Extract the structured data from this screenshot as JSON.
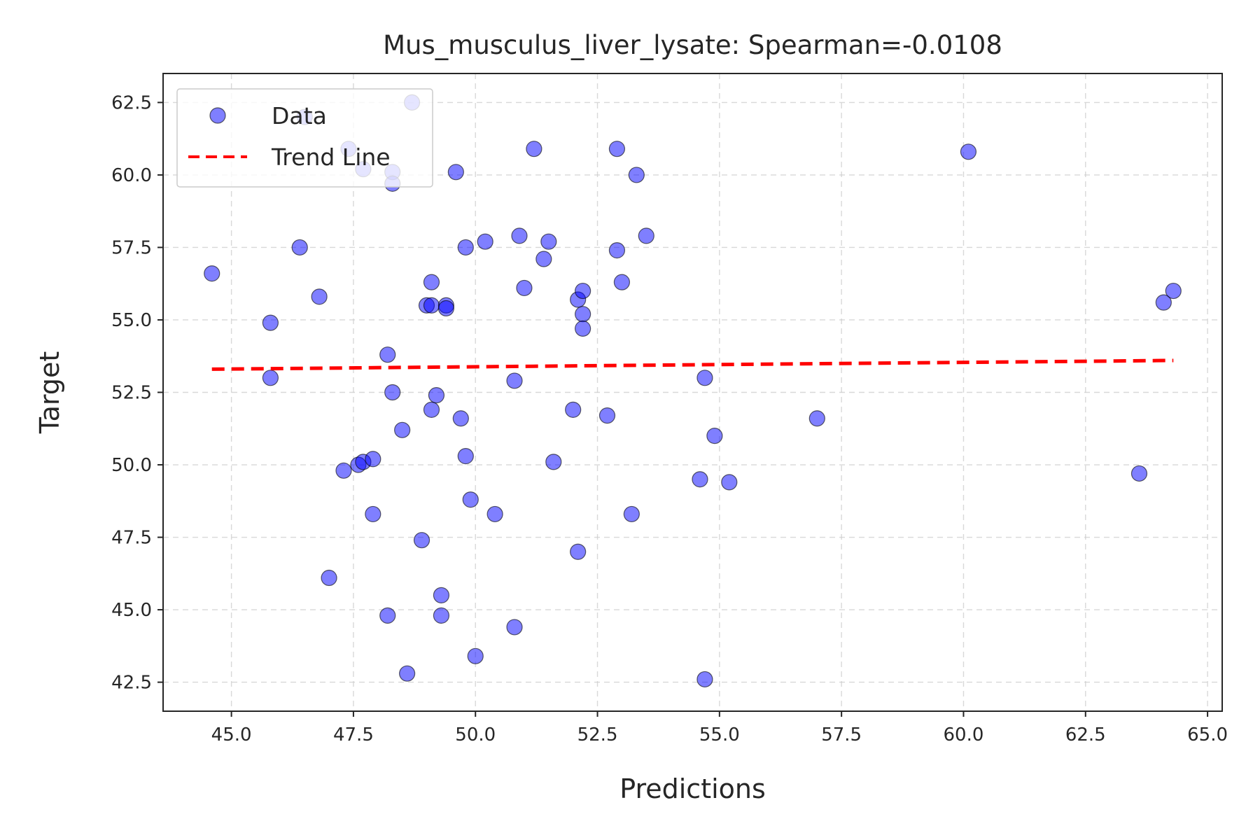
{
  "chart_data": {
    "type": "scatter",
    "title": "Mus_musculus_liver_lysate: Spearman=-0.0108",
    "xlabel": "Predictions",
    "ylabel": "Target",
    "xlim": [
      43.6,
      65.3
    ],
    "ylim": [
      41.5,
      63.5
    ],
    "xticks": [
      45.0,
      47.5,
      50.0,
      52.5,
      55.0,
      57.5,
      60.0,
      62.5,
      65.0
    ],
    "yticks": [
      42.5,
      45.0,
      47.5,
      50.0,
      52.5,
      55.0,
      57.5,
      60.0,
      62.5
    ],
    "xtick_labels": [
      "45.0",
      "47.5",
      "50.0",
      "52.5",
      "55.0",
      "57.5",
      "60.0",
      "62.5",
      "65.0"
    ],
    "ytick_labels": [
      "42.5",
      "45.0",
      "47.5",
      "50.0",
      "52.5",
      "55.0",
      "57.5",
      "60.0",
      "62.5"
    ],
    "grid": true,
    "legend": {
      "placement": "upper-left",
      "entries": [
        {
          "label": "Data",
          "kind": "marker"
        },
        {
          "label": "Trend Line",
          "kind": "dashed-line"
        }
      ]
    },
    "colors": {
      "points": "#0000ff",
      "point_edge": "#000000",
      "trend": "#ff0000"
    },
    "series": [
      {
        "name": "Data",
        "kind": "scatter",
        "points": [
          [
            44.6,
            56.6
          ],
          [
            45.8,
            54.9
          ],
          [
            45.8,
            53.0
          ],
          [
            46.4,
            57.5
          ],
          [
            46.5,
            62.0
          ],
          [
            46.8,
            55.8
          ],
          [
            47.0,
            46.1
          ],
          [
            47.3,
            49.8
          ],
          [
            47.4,
            60.9
          ],
          [
            47.6,
            50.0
          ],
          [
            47.7,
            50.1
          ],
          [
            47.7,
            60.2
          ],
          [
            47.9,
            50.2
          ],
          [
            47.9,
            48.3
          ],
          [
            48.2,
            53.8
          ],
          [
            48.2,
            44.8
          ],
          [
            48.3,
            52.5
          ],
          [
            48.3,
            60.1
          ],
          [
            48.3,
            59.7
          ],
          [
            48.5,
            51.2
          ],
          [
            48.6,
            42.8
          ],
          [
            48.7,
            62.5
          ],
          [
            48.9,
            47.4
          ],
          [
            49.0,
            55.5
          ],
          [
            49.1,
            56.3
          ],
          [
            49.1,
            55.5
          ],
          [
            49.1,
            51.9
          ],
          [
            49.2,
            52.4
          ],
          [
            49.3,
            45.5
          ],
          [
            49.3,
            44.8
          ],
          [
            49.4,
            55.5
          ],
          [
            49.4,
            55.4
          ],
          [
            49.6,
            60.1
          ],
          [
            49.7,
            51.6
          ],
          [
            49.8,
            50.3
          ],
          [
            49.8,
            57.5
          ],
          [
            49.9,
            48.8
          ],
          [
            50.0,
            43.4
          ],
          [
            50.2,
            57.7
          ],
          [
            50.4,
            48.3
          ],
          [
            50.8,
            52.9
          ],
          [
            50.8,
            44.4
          ],
          [
            50.9,
            57.9
          ],
          [
            51.0,
            56.1
          ],
          [
            51.2,
            60.9
          ],
          [
            51.4,
            57.1
          ],
          [
            51.5,
            57.7
          ],
          [
            51.6,
            50.1
          ],
          [
            52.0,
            51.9
          ],
          [
            52.1,
            55.7
          ],
          [
            52.1,
            47.0
          ],
          [
            52.2,
            56.0
          ],
          [
            52.2,
            55.2
          ],
          [
            52.2,
            54.7
          ],
          [
            52.7,
            51.7
          ],
          [
            52.9,
            60.9
          ],
          [
            52.9,
            57.4
          ],
          [
            53.0,
            56.3
          ],
          [
            53.2,
            48.3
          ],
          [
            53.3,
            60.0
          ],
          [
            53.5,
            57.9
          ],
          [
            54.6,
            49.5
          ],
          [
            54.7,
            53.0
          ],
          [
            54.7,
            42.6
          ],
          [
            54.9,
            51.0
          ],
          [
            55.2,
            49.4
          ],
          [
            57.0,
            51.6
          ],
          [
            60.1,
            60.8
          ],
          [
            63.6,
            49.7
          ],
          [
            64.1,
            55.6
          ],
          [
            64.3,
            56.0
          ]
        ]
      },
      {
        "name": "Trend Line",
        "kind": "line",
        "points": [
          [
            44.6,
            53.3
          ],
          [
            64.3,
            53.6
          ]
        ]
      }
    ]
  }
}
